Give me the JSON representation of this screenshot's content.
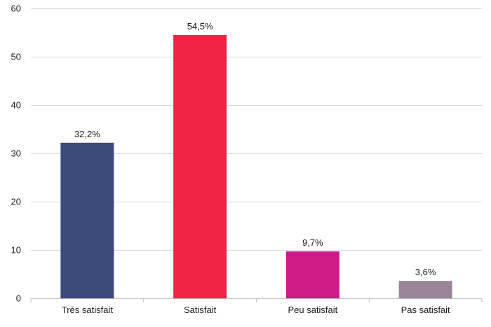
{
  "chart_data": {
    "type": "bar",
    "categories": [
      "Très satisfait",
      "Satisfait",
      "Peu satisfait",
      "Pas satisfait"
    ],
    "values": [
      32.2,
      54.5,
      9.7,
      3.6
    ],
    "data_labels": [
      "32,2%",
      "54,5%",
      "9,7%",
      "3,6%"
    ],
    "colors": [
      "#3d4b7a",
      "#f22445",
      "#d01a8a",
      "#9a8598"
    ],
    "yticks": [
      "0",
      "10",
      "20",
      "30",
      "40",
      "50",
      "60"
    ],
    "ylim": [
      0,
      60
    ],
    "grid": true,
    "legend": "none"
  }
}
